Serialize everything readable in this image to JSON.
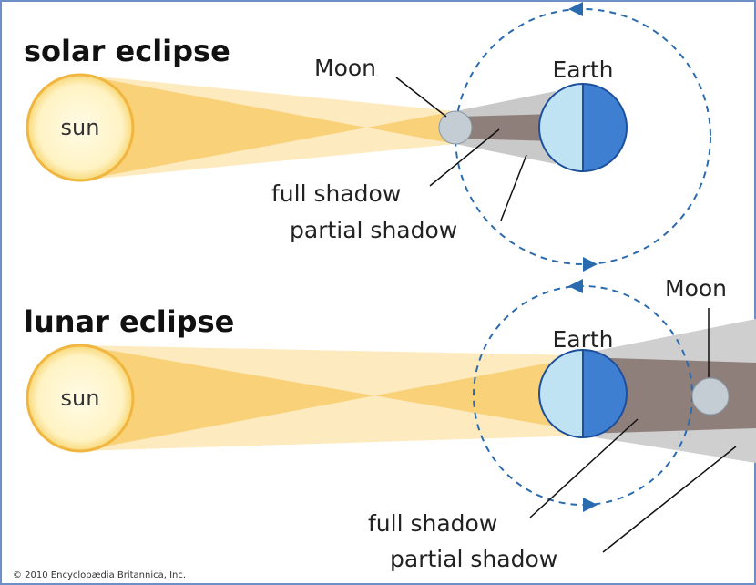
{
  "solar": {
    "title": "solar eclipse",
    "sun": "sun",
    "moon": "Moon",
    "earth": "Earth",
    "full_shadow": "full shadow",
    "partial_shadow": "partial shadow"
  },
  "lunar": {
    "title": "lunar eclipse",
    "sun": "sun",
    "earth": "Earth",
    "moon": "Moon",
    "full_shadow": "full shadow",
    "partial_shadow": "partial shadow"
  },
  "credit": "© 2010 Encyclopædia Britannica, Inc."
}
